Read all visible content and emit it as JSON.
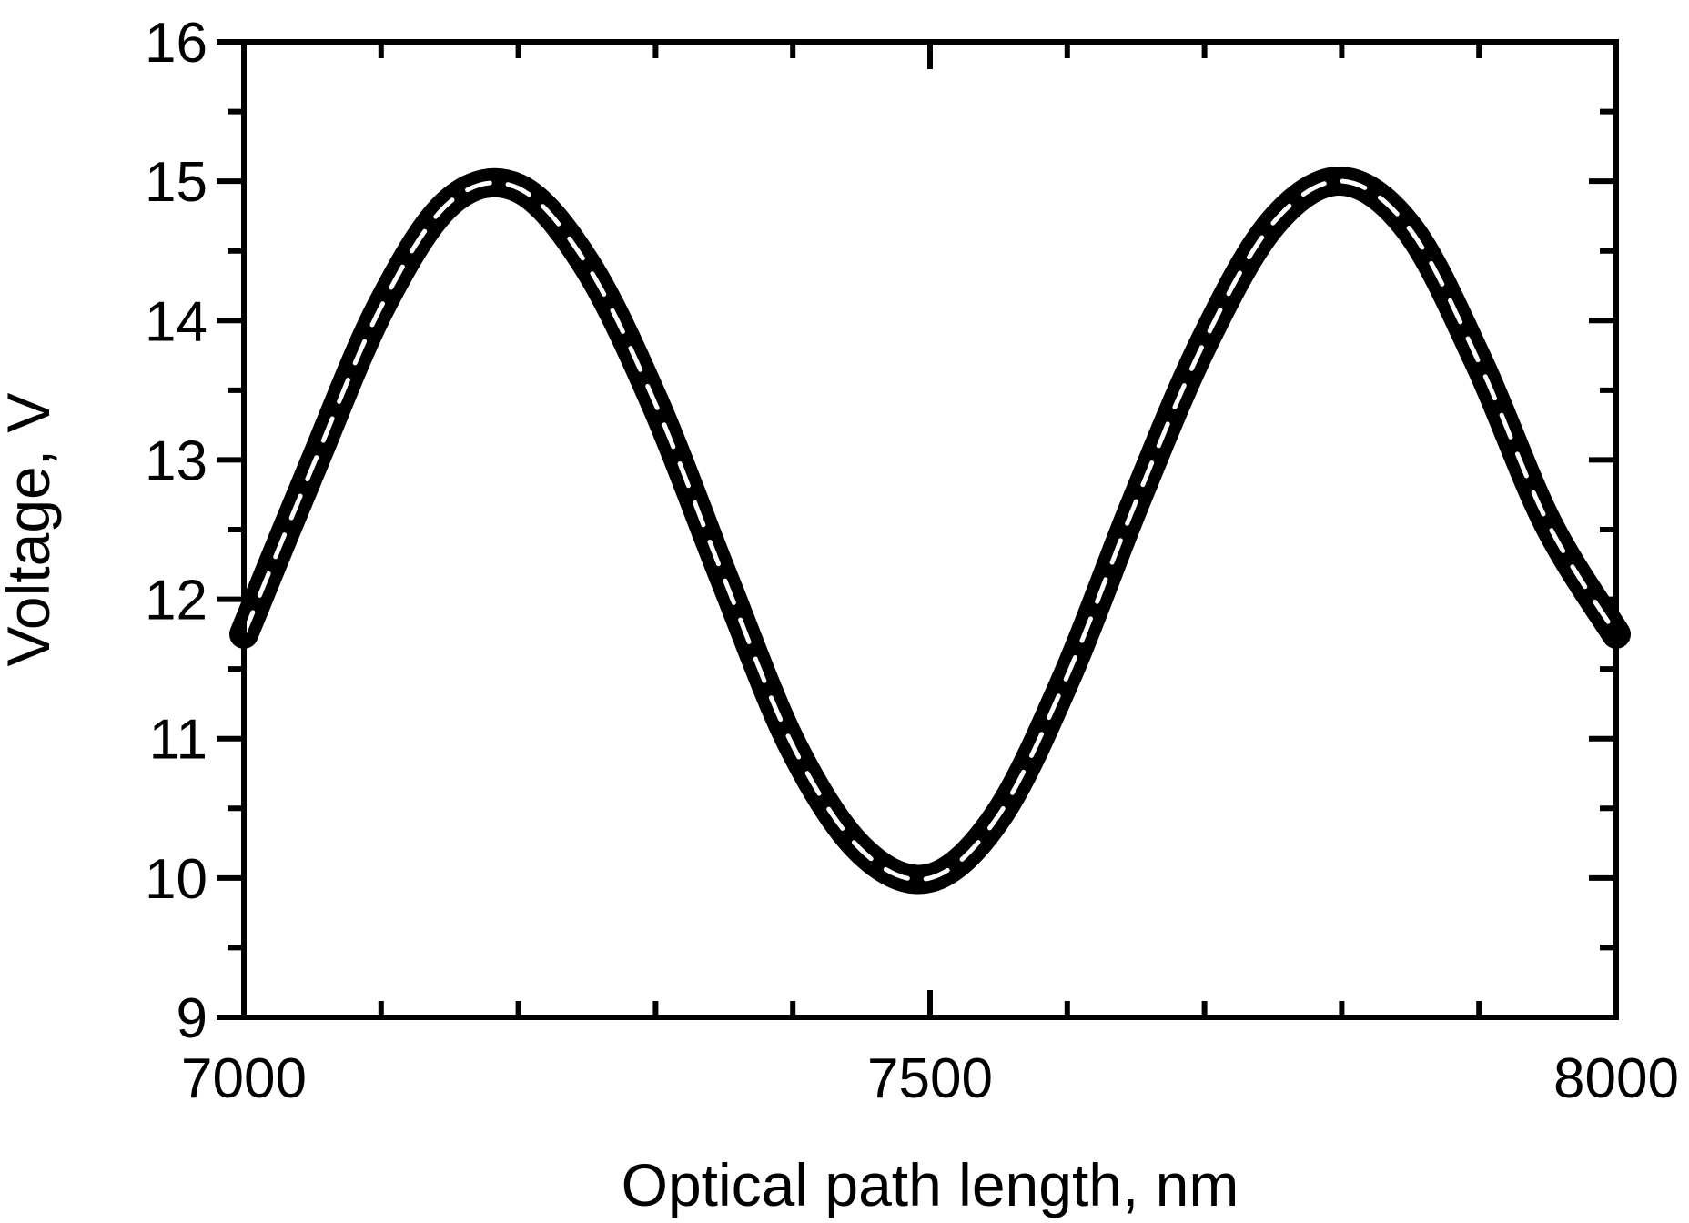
{
  "chart_data": {
    "type": "line",
    "title": "",
    "xlabel": "Optical path length, nm",
    "ylabel": "Voltage, V",
    "xlim": [
      7000,
      8000
    ],
    "ylim": [
      9,
      16
    ],
    "x_ticks": [
      "7000",
      "7500",
      "8000"
    ],
    "y_ticks": [
      "9",
      "10",
      "11",
      "12",
      "13",
      "14",
      "15",
      "16"
    ],
    "x_minor_step": 100,
    "y_minor_step": 0.5,
    "grid": false,
    "legend": "none",
    "series": [
      {
        "style": "thick black solid band",
        "color": "#000000",
        "x": [
          7000,
          7050,
          7100,
          7150,
          7200,
          7250,
          7300,
          7350,
          7400,
          7450,
          7500,
          7550,
          7600,
          7650,
          7700,
          7750,
          7800,
          7850,
          7900,
          7950,
          8000
        ],
        "y": [
          11.75,
          12.95,
          14.1,
          14.85,
          14.95,
          14.4,
          13.4,
          12.15,
          10.95,
          10.2,
          10.0,
          10.45,
          11.45,
          12.7,
          13.85,
          14.7,
          15.0,
          14.65,
          13.7,
          12.55,
          11.75
        ]
      },
      {
        "style": "white dashed centerline",
        "color": "#ffffff",
        "x": [
          7000,
          7050,
          7100,
          7150,
          7200,
          7250,
          7300,
          7350,
          7400,
          7450,
          7500,
          7550,
          7600,
          7650,
          7700,
          7750,
          7800,
          7850,
          7900,
          7950,
          8000
        ],
        "y": [
          11.75,
          12.95,
          14.1,
          14.85,
          14.95,
          14.4,
          13.4,
          12.15,
          10.95,
          10.2,
          10.0,
          10.45,
          11.45,
          12.7,
          13.85,
          14.7,
          15.0,
          14.65,
          13.7,
          12.55,
          11.75
        ]
      }
    ]
  }
}
